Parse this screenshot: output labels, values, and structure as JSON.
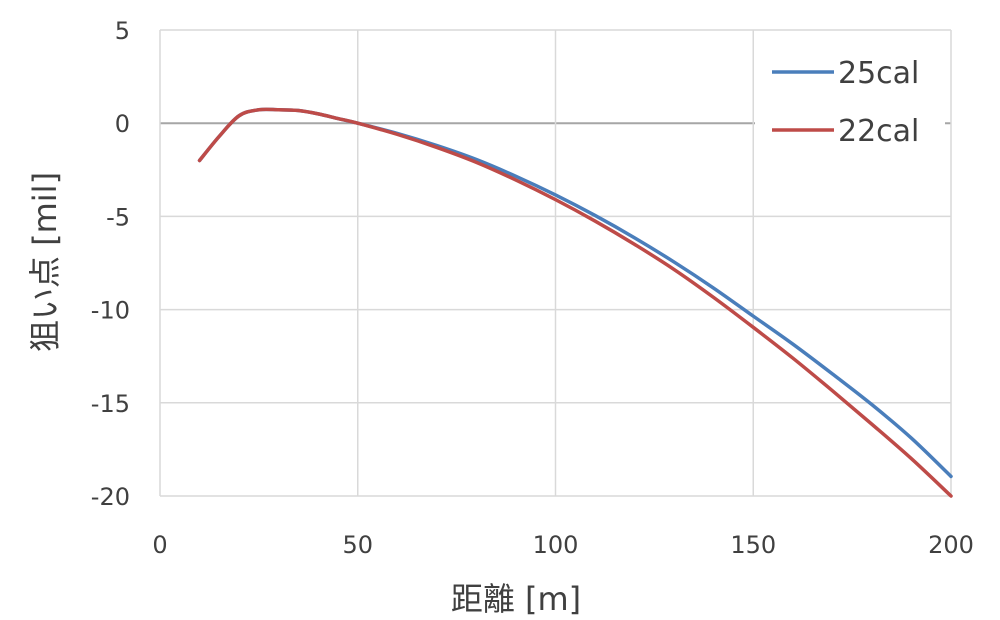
{
  "chart_data": {
    "type": "line",
    "xlabel": "距離 [m]",
    "ylabel": "狙い点 [mil]",
    "xlim": [
      0,
      200
    ],
    "ylim": [
      -20,
      5
    ],
    "xticks": [
      0,
      50,
      100,
      150,
      200
    ],
    "yticks": [
      5,
      0,
      -5,
      -10,
      -15,
      -20
    ],
    "xtick_labels": [
      "0",
      "50",
      "100",
      "150",
      "200"
    ],
    "ytick_labels": [
      "5",
      "0",
      "-5",
      "-10",
      "-15",
      "-20"
    ],
    "grid": true,
    "legend_position": "top-right",
    "series": [
      {
        "name": "25cal",
        "color": "#4a7ebb",
        "x": [
          10,
          15,
          20,
          25,
          30,
          35,
          40,
          45,
          50,
          60,
          70,
          80,
          90,
          100,
          110,
          120,
          130,
          140,
          150,
          160,
          170,
          180,
          190,
          200
        ],
        "y": [
          -2.0,
          -0.7,
          0.4,
          0.72,
          0.72,
          0.68,
          0.5,
          0.25,
          0.0,
          -0.55,
          -1.2,
          -1.95,
          -2.85,
          -3.85,
          -4.95,
          -6.15,
          -7.45,
          -8.85,
          -10.35,
          -11.85,
          -13.45,
          -15.1,
          -16.9,
          -18.95
        ]
      },
      {
        "name": "22cal",
        "color": "#be4b48",
        "x": [
          10,
          15,
          20,
          25,
          30,
          35,
          40,
          45,
          50,
          60,
          70,
          80,
          90,
          100,
          110,
          120,
          130,
          140,
          150,
          160,
          170,
          180,
          190,
          200
        ],
        "y": [
          -2.0,
          -0.7,
          0.4,
          0.72,
          0.72,
          0.68,
          0.5,
          0.25,
          0.0,
          -0.6,
          -1.3,
          -2.1,
          -3.05,
          -4.1,
          -5.25,
          -6.5,
          -7.85,
          -9.35,
          -10.95,
          -12.6,
          -14.35,
          -16.15,
          -18.0,
          -20.0
        ]
      }
    ]
  }
}
